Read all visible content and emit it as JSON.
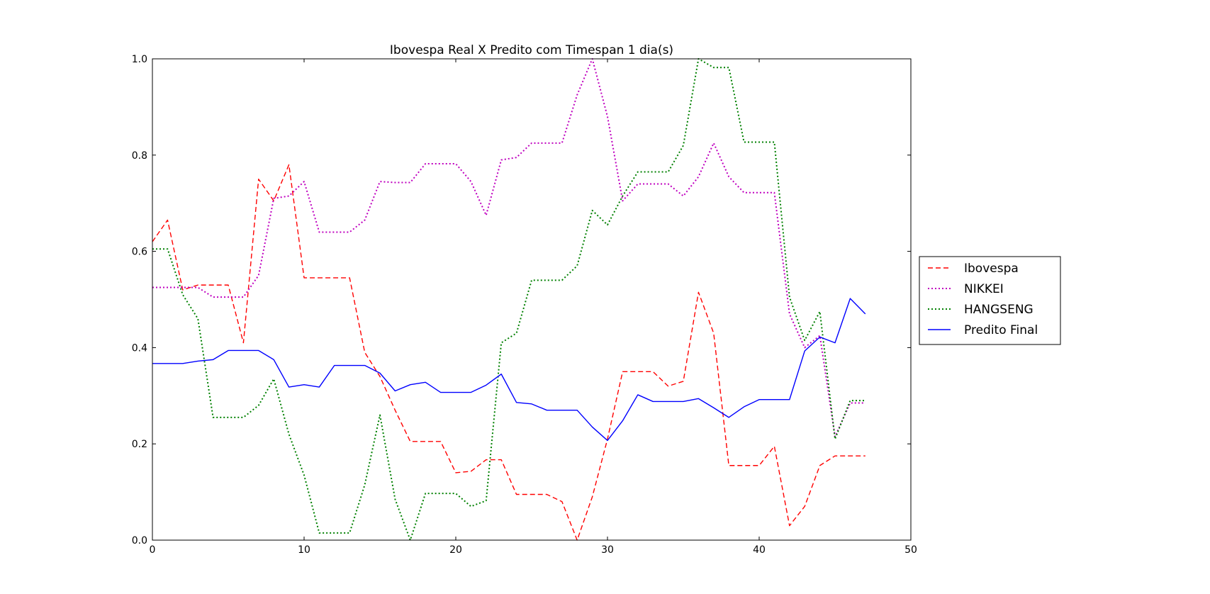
{
  "chart_data": {
    "type": "line",
    "title": "Ibovespa Real X Predito com Timespan 1 dia(s)",
    "xlabel": "",
    "ylabel": "",
    "xlim": [
      0,
      50
    ],
    "ylim": [
      0.0,
      1.0
    ],
    "xticks": [
      0,
      10,
      20,
      30,
      40,
      50
    ],
    "yticks": [
      0.0,
      0.2,
      0.4,
      0.6,
      0.8,
      1.0
    ],
    "xtick_labels": [
      "0",
      "10",
      "20",
      "30",
      "40",
      "50"
    ],
    "ytick_labels": [
      "0.0",
      "0.2",
      "0.4",
      "0.6",
      "0.8",
      "1.0"
    ],
    "grid": false,
    "legend_position": "outside-right",
    "x": [
      0,
      1,
      2,
      3,
      4,
      5,
      6,
      7,
      8,
      9,
      10,
      11,
      12,
      13,
      14,
      15,
      16,
      17,
      18,
      19,
      20,
      21,
      22,
      23,
      24,
      25,
      26,
      27,
      28,
      29,
      30,
      31,
      32,
      33,
      34,
      35,
      36,
      37,
      38,
      39,
      40,
      41,
      42,
      43,
      44,
      45,
      46,
      47
    ],
    "series": [
      {
        "name": "Ibovespa",
        "color": "#ff0000",
        "style": "dashed",
        "values": [
          0.62,
          0.665,
          0.52,
          0.53,
          0.53,
          0.53,
          0.41,
          0.75,
          0.705,
          0.78,
          0.545,
          0.545,
          0.545,
          0.545,
          0.39,
          0.34,
          0.27,
          0.205,
          0.205,
          0.205,
          0.14,
          0.143,
          0.167,
          0.167,
          0.095,
          0.095,
          0.095,
          0.08,
          0.0,
          0.09,
          0.21,
          0.35,
          0.35,
          0.35,
          0.32,
          0.33,
          0.515,
          0.43,
          0.155,
          0.155,
          0.155,
          0.195,
          0.03,
          0.07,
          0.155,
          0.175,
          0.175,
          0.175
        ]
      },
      {
        "name": "NIKKEI",
        "color": "#bf00bf",
        "style": "dotted",
        "values": [
          0.525,
          0.525,
          0.525,
          0.525,
          0.505,
          0.505,
          0.505,
          0.55,
          0.71,
          0.715,
          0.745,
          0.64,
          0.64,
          0.64,
          0.665,
          0.745,
          0.743,
          0.743,
          0.782,
          0.782,
          0.782,
          0.745,
          0.675,
          0.79,
          0.795,
          0.825,
          0.825,
          0.825,
          0.925,
          1.0,
          0.88,
          0.705,
          0.74,
          0.74,
          0.74,
          0.715,
          0.755,
          0.825,
          0.755,
          0.722,
          0.722,
          0.722,
          0.47,
          0.4,
          0.425,
          0.215,
          0.285,
          0.285
        ]
      },
      {
        "name": "HANGSENG",
        "color": "#008000",
        "style": "dotted",
        "values": [
          0.605,
          0.605,
          0.51,
          0.46,
          0.255,
          0.255,
          0.255,
          0.28,
          0.335,
          0.22,
          0.135,
          0.015,
          0.015,
          0.015,
          0.115,
          0.26,
          0.085,
          0.0,
          0.097,
          0.097,
          0.097,
          0.07,
          0.082,
          0.41,
          0.43,
          0.54,
          0.54,
          0.54,
          0.57,
          0.685,
          0.655,
          0.715,
          0.765,
          0.765,
          0.765,
          0.82,
          1.0,
          0.982,
          0.982,
          0.827,
          0.827,
          0.827,
          0.505,
          0.415,
          0.475,
          0.21,
          0.29,
          0.29
        ]
      },
      {
        "name": "Predito Final",
        "color": "#0000ff",
        "style": "solid",
        "values": [
          0.367,
          0.367,
          0.367,
          0.372,
          0.375,
          0.394,
          0.394,
          0.394,
          0.375,
          0.318,
          0.323,
          0.318,
          0.363,
          0.363,
          0.363,
          0.347,
          0.31,
          0.323,
          0.328,
          0.307,
          0.307,
          0.307,
          0.322,
          0.345,
          0.286,
          0.283,
          0.27,
          0.27,
          0.27,
          0.235,
          0.207,
          0.248,
          0.302,
          0.288,
          0.288,
          0.288,
          0.294,
          0.275,
          0.255,
          0.277,
          0.292,
          0.292,
          0.292,
          0.393,
          0.422,
          0.41,
          0.502,
          0.47
        ]
      }
    ]
  }
}
